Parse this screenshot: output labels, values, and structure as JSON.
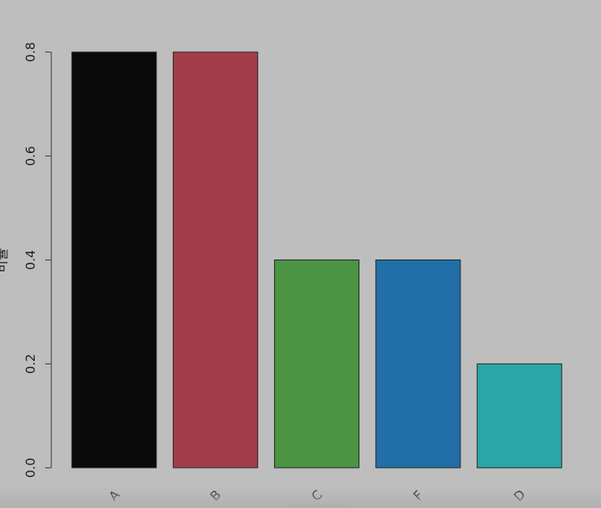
{
  "chart_data": {
    "type": "bar",
    "categories": [
      "A",
      "B",
      "C",
      "F",
      "D"
    ],
    "values": [
      0.8,
      0.8,
      0.4,
      0.4,
      0.2
    ],
    "colors": [
      "#0a0a0a",
      "#a23e4b",
      "#4a9443",
      "#216ea8",
      "#2aa6a6"
    ],
    "xlabel": "□□□□□",
    "ylabel": "비율",
    "ylim": [
      0,
      0.8
    ],
    "yticks": [
      "0.0",
      "0.2",
      "0.4",
      "0.6",
      "0.8"
    ],
    "grid": false,
    "background": "#bebebe"
  }
}
